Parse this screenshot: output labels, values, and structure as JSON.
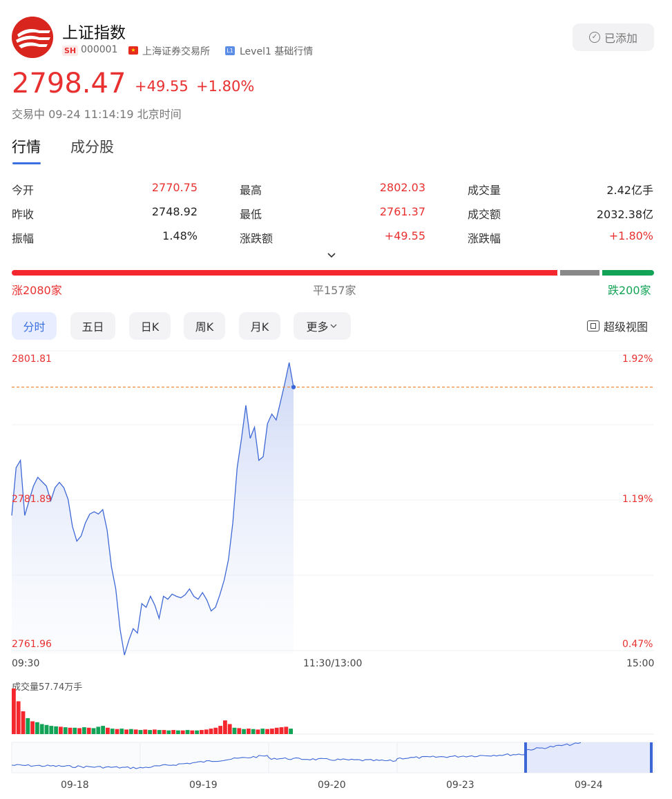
{
  "header": {
    "title": "上证指数",
    "market_badge": "SH",
    "code": "000001",
    "exchange": "上海证券交易所",
    "level_badge": "L1",
    "level_text": "Level1 基础行情",
    "added_label": "已添加"
  },
  "quote": {
    "price": "2798.47",
    "change": "+49.55",
    "change_pct": "+1.80%",
    "status": "交易中 09-24 11:14:19 北京时间"
  },
  "tabs": {
    "quote": "行情",
    "components": "成分股"
  },
  "stats": [
    {
      "label": "今开",
      "value": "2770.75",
      "color": "#e93030"
    },
    {
      "label": "最高",
      "value": "2802.03",
      "color": "#e93030"
    },
    {
      "label": "成交量",
      "value": "2.42亿手",
      "color": "#222222"
    },
    {
      "label": "昨收",
      "value": "2748.92",
      "color": "#222222"
    },
    {
      "label": "最低",
      "value": "2761.37",
      "color": "#e93030"
    },
    {
      "label": "成交额",
      "value": "2032.38亿",
      "color": "#222222"
    },
    {
      "label": "振幅",
      "value": "1.48%",
      "color": "#222222"
    },
    {
      "label": "涨跌额",
      "value": "+49.55",
      "color": "#e93030"
    },
    {
      "label": "涨跌幅",
      "value": "+1.80%",
      "color": "#e93030"
    }
  ],
  "breadth": {
    "up": "涨2080家",
    "flat": "平157家",
    "down": "跌200家",
    "up_n": 2080,
    "flat_n": 157,
    "down_n": 200
  },
  "periods": [
    "分时",
    "五日",
    "日K",
    "周K",
    "月K",
    "更多"
  ],
  "active_period": "分时",
  "super_view": "超级视图",
  "chart_data": {
    "type": "line",
    "y_left_ticks": [
      "2801.81",
      "2781.89",
      "2761.96"
    ],
    "y_right_ticks": [
      "1.92%",
      "1.19%",
      "0.47%"
    ],
    "x_ticks": [
      "09:30",
      "11:30/13:00",
      "15:00"
    ],
    "ylim": [
      2761.96,
      2801.81
    ],
    "last_price": 2798.47,
    "series": [
      {
        "values": [
          2781.0,
          2787.5,
          2788.5,
          2781.0,
          2783.0,
          2785.0,
          2786.2,
          2785.6,
          2785.0,
          2783.0,
          2784.8,
          2785.5,
          2784.8,
          2783.2,
          2779.5,
          2777.5,
          2778.2,
          2780.0,
          2781.2,
          2781.5,
          2781.2,
          2781.8,
          2779.0,
          2774.0,
          2771.0,
          2765.5,
          2762.0,
          2764.0,
          2765.6,
          2765.0,
          2769.0,
          2768.5,
          2770.0,
          2768.8,
          2767.0,
          2770.0,
          2769.6,
          2770.3,
          2770.0,
          2769.8,
          2770.2,
          2771.0,
          2770.0,
          2769.6,
          2770.5,
          2769.5,
          2768.0,
          2768.5,
          2770.2,
          2772.2,
          2775.0,
          2780.0,
          2787.5,
          2791.5,
          2796.0,
          2791.5,
          2793.0,
          2788.5,
          2789.0,
          2793.5,
          2794.8,
          2794.0,
          2796.5,
          2799.0,
          2801.81,
          2798.47
        ]
      }
    ],
    "volume_label": "成交量57.74万手",
    "volume": [
      {
        "v": 100,
        "up": 1
      },
      {
        "v": 72,
        "up": 1
      },
      {
        "v": 50,
        "up": 1
      },
      {
        "v": 35,
        "up": 0
      },
      {
        "v": 28,
        "up": 1
      },
      {
        "v": 26,
        "up": 0
      },
      {
        "v": 22,
        "up": 0
      },
      {
        "v": 20,
        "up": 0
      },
      {
        "v": 18,
        "up": 0
      },
      {
        "v": 17,
        "up": 0
      },
      {
        "v": 16,
        "up": 1
      },
      {
        "v": 15,
        "up": 0
      },
      {
        "v": 14,
        "up": 1
      },
      {
        "v": 14,
        "up": 0
      },
      {
        "v": 13,
        "up": 1
      },
      {
        "v": 15,
        "up": 0
      },
      {
        "v": 14,
        "up": 1
      },
      {
        "v": 13,
        "up": 0
      },
      {
        "v": 16,
        "up": 0
      },
      {
        "v": 18,
        "up": 0
      },
      {
        "v": 14,
        "up": 1
      },
      {
        "v": 12,
        "up": 0
      },
      {
        "v": 11,
        "up": 1
      },
      {
        "v": 12,
        "up": 0
      },
      {
        "v": 10,
        "up": 1
      },
      {
        "v": 11,
        "up": 0
      },
      {
        "v": 10,
        "up": 1
      },
      {
        "v": 9,
        "up": 0
      },
      {
        "v": 10,
        "up": 1
      },
      {
        "v": 9,
        "up": 0
      },
      {
        "v": 10,
        "up": 1
      },
      {
        "v": 9,
        "up": 0
      },
      {
        "v": 9,
        "up": 1
      },
      {
        "v": 8,
        "up": 0
      },
      {
        "v": 9,
        "up": 1
      },
      {
        "v": 8,
        "up": 0
      },
      {
        "v": 8,
        "up": 1
      },
      {
        "v": 9,
        "up": 0
      },
      {
        "v": 8,
        "up": 1
      },
      {
        "v": 8,
        "up": 0
      },
      {
        "v": 9,
        "up": 1
      },
      {
        "v": 10,
        "up": 1
      },
      {
        "v": 12,
        "up": 1
      },
      {
        "v": 14,
        "up": 1
      },
      {
        "v": 18,
        "up": 1
      },
      {
        "v": 30,
        "up": 1
      },
      {
        "v": 22,
        "up": 1
      },
      {
        "v": 14,
        "up": 0
      },
      {
        "v": 13,
        "up": 1
      },
      {
        "v": 11,
        "up": 0
      },
      {
        "v": 12,
        "up": 1
      },
      {
        "v": 11,
        "up": 0
      },
      {
        "v": 10,
        "up": 1
      },
      {
        "v": 12,
        "up": 0
      },
      {
        "v": 11,
        "up": 1
      },
      {
        "v": 12,
        "up": 1
      },
      {
        "v": 14,
        "up": 1
      },
      {
        "v": 15,
        "up": 1
      },
      {
        "v": 16,
        "up": 1
      },
      {
        "v": 12,
        "up": 0
      }
    ],
    "overview_dates": [
      "09-18",
      "09-19",
      "09-20",
      "09-23",
      "09-24"
    ]
  }
}
